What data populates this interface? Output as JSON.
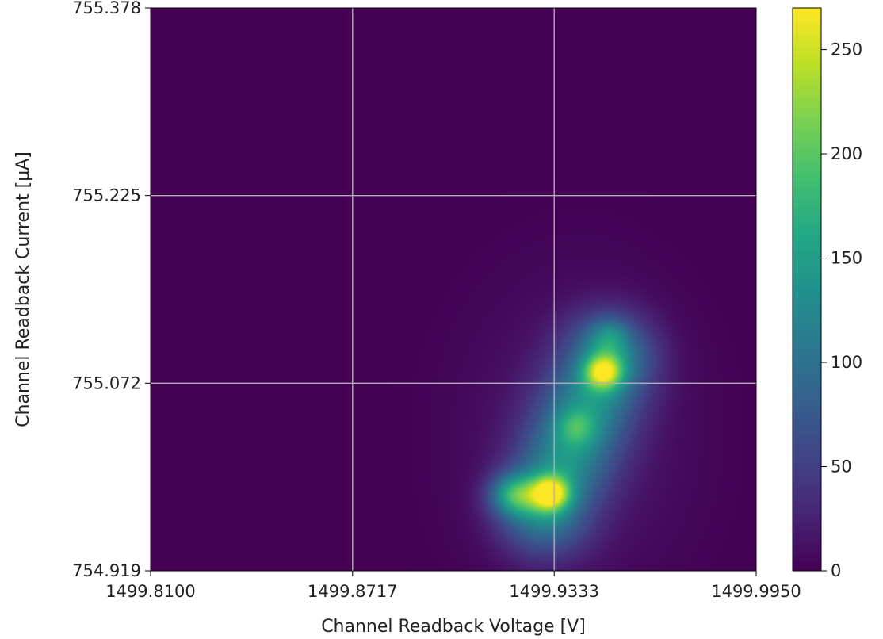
{
  "chart_data": {
    "type": "heatmap",
    "title": "",
    "xlabel": "Channel Readback Voltage [V]",
    "ylabel": "Channel Readback Current [μA]",
    "xlim": [
      1499.81,
      1499.995
    ],
    "ylim": [
      754.919,
      755.378
    ],
    "x_ticks": [
      1499.81,
      1499.8717,
      1499.9333,
      1499.995
    ],
    "x_tick_labels": [
      "1499.8100",
      "1499.8717",
      "1499.9333",
      "1499.9950"
    ],
    "y_ticks": [
      754.919,
      755.072,
      755.225,
      755.378
    ],
    "y_tick_labels": [
      "754.919",
      "755.072",
      "755.225",
      "755.378"
    ],
    "grid": true,
    "colormap": "viridis",
    "background_color": "#440154",
    "colorbar": {
      "range": [
        0,
        270
      ],
      "ticks": [
        0,
        50,
        100,
        150,
        200,
        250
      ],
      "tick_labels": [
        "0",
        "50",
        "100",
        "150",
        "200",
        "250"
      ]
    },
    "density_peaks": [
      {
        "x": 1499.9322,
        "y": 754.9819,
        "value": 270
      },
      {
        "x": 1499.9484,
        "y": 755.0813,
        "value": 255
      },
      {
        "x": 1499.9215,
        "y": 754.9814,
        "value": 215
      },
      {
        "x": 1499.9401,
        "y": 755.036,
        "value": 150
      },
      {
        "x": 1499.9502,
        "y": 755.1102,
        "value": 145
      }
    ]
  }
}
